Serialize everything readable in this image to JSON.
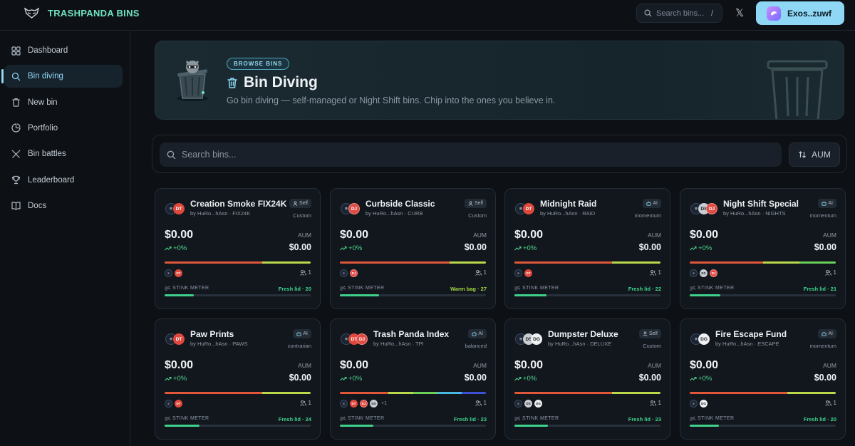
{
  "header": {
    "brand": "TRASHPANDA BINS",
    "search_placeholder": "Search bins...",
    "search_shortcut": "/",
    "x_icon_label": "𝕏",
    "user_label": "Exos..zuwf"
  },
  "sidebar": {
    "items": [
      {
        "label": "Dashboard",
        "icon": "grid-icon",
        "active": false
      },
      {
        "label": "Bin diving",
        "icon": "search-icon",
        "active": true
      },
      {
        "label": "New bin",
        "icon": "trash-icon",
        "active": false
      },
      {
        "label": "Portfolio",
        "icon": "pie-chart-icon",
        "active": false
      },
      {
        "label": "Bin battles",
        "icon": "swords-icon",
        "active": false
      },
      {
        "label": "Leaderboard",
        "icon": "trophy-icon",
        "active": false
      },
      {
        "label": "Docs",
        "icon": "book-icon",
        "active": false
      }
    ]
  },
  "hero": {
    "badge": "BROWSE BINS",
    "title": "Bin Diving",
    "subtitle": "Go bin diving — self-managed or Night Shift bins. Chip into the ones you believe in."
  },
  "search": {
    "placeholder": "Search bins...",
    "sort_label": "AUM"
  },
  "cards": [
    {
      "name": "Creation Smoke FIX24K",
      "by": "by HuRo...hAsn · FIX24K",
      "badge": "Self",
      "strategy": "Custom",
      "price": "$0.00",
      "change": "+0%",
      "aum_label": "AUM",
      "aum": "$0.00",
      "holders_count": "1",
      "stink_label": "STINK METER",
      "status": "Fresh lid · 20",
      "status_color": "#3fd18b",
      "meter": 0.2,
      "logo_tokens": [
        "sol",
        "dt"
      ],
      "holders": [
        "sol",
        "dt"
      ],
      "more": "",
      "bar": [
        "#e0573a",
        "#e0573a",
        "#b9d84a"
      ]
    },
    {
      "name": "Curbside Classic",
      "by": "by HuRo...hAsn · CURB",
      "badge": "Self",
      "strategy": "Custom",
      "price": "$0.00",
      "change": "+0%",
      "aum_label": "AUM",
      "aum": "$0.00",
      "holders_count": "1",
      "stink_label": "STINK METER",
      "status": "Warm bag · 27",
      "status_color": "#9ed63f",
      "meter": 0.27,
      "logo_tokens": [
        "sol",
        "dj"
      ],
      "holders": [
        "sol",
        "dj"
      ],
      "more": "",
      "bar": [
        "#e0573a",
        "#e0573a",
        "#e0573a",
        "#b9d84a"
      ]
    },
    {
      "name": "Midnight Raid",
      "by": "by HuRo...hAsn · RAID",
      "badge": "AI",
      "strategy": "momentum",
      "price": "$0.00",
      "change": "+0%",
      "aum_label": "AUM",
      "aum": "$0.00",
      "holders_count": "1",
      "stink_label": "STINK METER",
      "status": "Fresh lid · 22",
      "status_color": "#3fd18b",
      "meter": 0.22,
      "logo_tokens": [
        "sol",
        "dt"
      ],
      "holders": [
        "sol",
        "dt"
      ],
      "more": "",
      "bar": [
        "#e0573a",
        "#e0573a",
        "#b9d84a"
      ]
    },
    {
      "name": "Night Shift Special",
      "by": "by HuRo...hAsn · NIGHTS",
      "badge": "AI",
      "strategy": "momentum",
      "price": "$0.00",
      "change": "+0%",
      "aum_label": "AUM",
      "aum": "$0.00",
      "holders_count": "1",
      "stink_label": "STINK METER",
      "status": "Fresh lid · 21",
      "status_color": "#3fd18b",
      "meter": 0.21,
      "logo_tokens": [
        "sol",
        "ds",
        "dj"
      ],
      "holders": [
        "sol",
        "ds",
        "dj"
      ],
      "more": "",
      "bar": [
        "#e0573a",
        "#e0573a",
        "#b9d84a",
        "#6ccf5a"
      ]
    },
    {
      "name": "Paw Prints",
      "by": "by HuRo...hAsn · PAWS",
      "badge": "AI",
      "strategy": "contrarian",
      "price": "$0.00",
      "change": "+0%",
      "aum_label": "AUM",
      "aum": "$0.00",
      "holders_count": "1",
      "stink_label": "STINK METER",
      "status": "Fresh lid · 24",
      "status_color": "#3fd18b",
      "meter": 0.24,
      "logo_tokens": [
        "sol",
        "dt"
      ],
      "holders": [
        "sol",
        "dt"
      ],
      "more": "",
      "bar": [
        "#e0573a",
        "#e0573a",
        "#b9d84a"
      ]
    },
    {
      "name": "Trash Panda Index",
      "by": "by HuRo...hAsn · TPI",
      "badge": "AI",
      "strategy": "balanced",
      "price": "$0.00",
      "change": "+0%",
      "aum_label": "AUM",
      "aum": "$0.00",
      "holders_count": "1",
      "stink_label": "STINK METER",
      "status": "Fresh lid · 23",
      "status_color": "#3fd18b",
      "meter": 0.23,
      "logo_tokens": [
        "sol",
        "dt",
        "dj"
      ],
      "holders": [
        "sol",
        "dt",
        "dj",
        "ds"
      ],
      "more": "+1",
      "bar": [
        "#e0573a",
        "#e0573a",
        "#b9d84a",
        "#6ccf5a",
        "#49b8e0",
        "#3d4fd6"
      ]
    },
    {
      "name": "Dumpster Deluxe",
      "by": "by HuRo...hAsn · DELUXE",
      "badge": "Self",
      "strategy": "Custom",
      "price": "$0.00",
      "change": "+0%",
      "aum_label": "AUM",
      "aum": "$0.00",
      "holders_count": "1",
      "stink_label": "STINK METER",
      "status": "Fresh lid · 23",
      "status_color": "#3fd18b",
      "meter": 0.23,
      "logo_tokens": [
        "sol",
        "ds",
        "dg"
      ],
      "holders": [
        "sol",
        "ds",
        "dg"
      ],
      "more": "",
      "bar": [
        "#e0573a",
        "#e0573a",
        "#b9d84a"
      ]
    },
    {
      "name": "Fire Escape Fund",
      "by": "by HuRo...hAsn · ESCAPE",
      "badge": "AI",
      "strategy": "momentum",
      "price": "$0.00",
      "change": "+0%",
      "aum_label": "AUM",
      "aum": "$0.00",
      "holders_count": "1",
      "stink_label": "STINK METER",
      "status": "Fresh lid · 20",
      "status_color": "#3fd18b",
      "meter": 0.2,
      "logo_tokens": [
        "sol",
        "dg"
      ],
      "holders": [
        "sol",
        "dg"
      ],
      "more": "",
      "bar": [
        "#e0573a",
        "#e0573a",
        "#b9d84a"
      ]
    }
  ]
}
